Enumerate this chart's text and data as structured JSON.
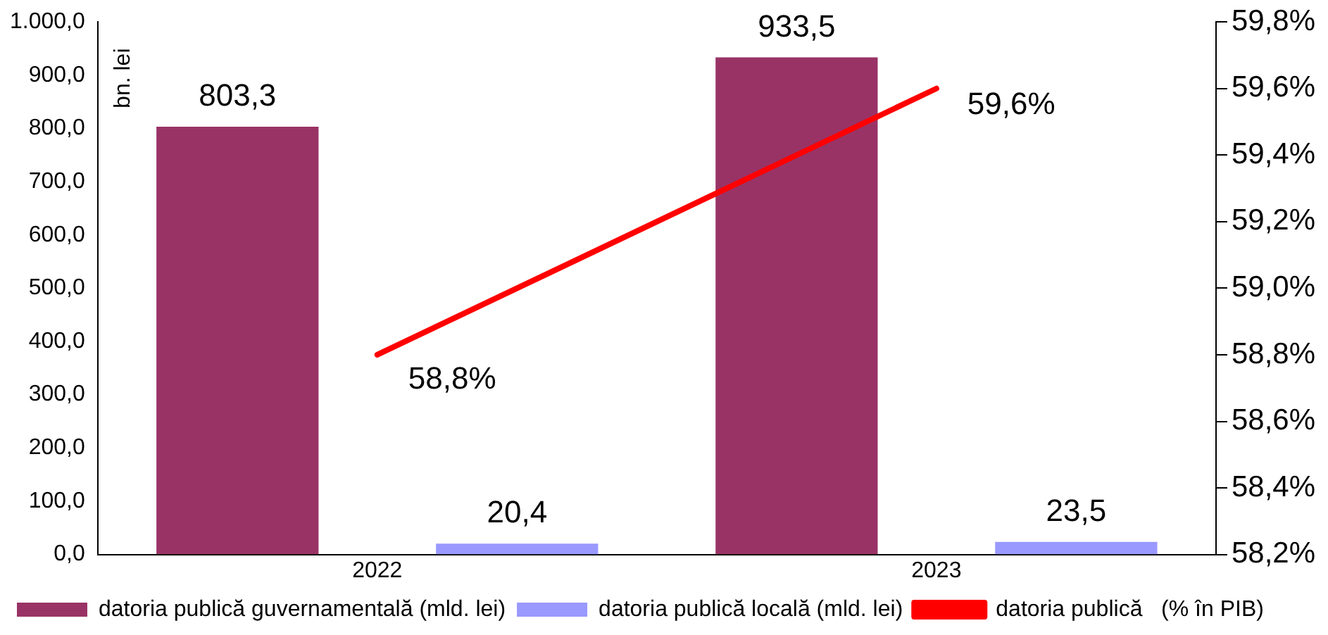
{
  "chart_data": {
    "type": "bar",
    "ylabel": "bn. lei",
    "categories": [
      "2022",
      "2023"
    ],
    "series": [
      {
        "name": "datoria publică guvernamentală (mld. lei)",
        "color": "#993366",
        "values": [
          803.3,
          933.5
        ],
        "value_labels": [
          "803,3",
          "933,5"
        ]
      },
      {
        "name": "datoria publică locală (mld. lei)",
        "color": "#9999ff",
        "values": [
          20.4,
          23.5
        ],
        "value_labels": [
          "20,4",
          "23,5"
        ]
      },
      {
        "name": "datoria publică   (% în PIB)",
        "type": "line",
        "axis": "y2",
        "color": "#ff0000",
        "values": [
          58.8,
          59.6
        ],
        "value_labels": [
          "58,8%",
          "59,6%"
        ]
      }
    ],
    "ylim": [
      0,
      1000
    ],
    "yticks": [
      {
        "value": 0,
        "label": "0,0"
      },
      {
        "value": 100,
        "label": "100,0"
      },
      {
        "value": 200,
        "label": "200,0"
      },
      {
        "value": 300,
        "label": "300,0"
      },
      {
        "value": 400,
        "label": "400,0"
      },
      {
        "value": 500,
        "label": "500,0"
      },
      {
        "value": 600,
        "label": "600,0"
      },
      {
        "value": 700,
        "label": "700,0"
      },
      {
        "value": 800,
        "label": "800,0"
      },
      {
        "value": 900,
        "label": "900,0"
      },
      {
        "value": 1000,
        "label": "1.000,0"
      }
    ],
    "y2lim": [
      58.2,
      59.8
    ],
    "y2ticks": [
      {
        "value": 58.2,
        "label": "58,2%"
      },
      {
        "value": 58.4,
        "label": "58,4%"
      },
      {
        "value": 58.6,
        "label": "58,6%"
      },
      {
        "value": 58.8,
        "label": "58,8%"
      },
      {
        "value": 59.0,
        "label": "59,0%"
      },
      {
        "value": 59.2,
        "label": "59,2%"
      },
      {
        "value": 59.4,
        "label": "59,4%"
      },
      {
        "value": 59.6,
        "label": "59,6%"
      },
      {
        "value": 59.8,
        "label": "59,8%"
      }
    ],
    "grid": false,
    "legend": "bottom"
  }
}
